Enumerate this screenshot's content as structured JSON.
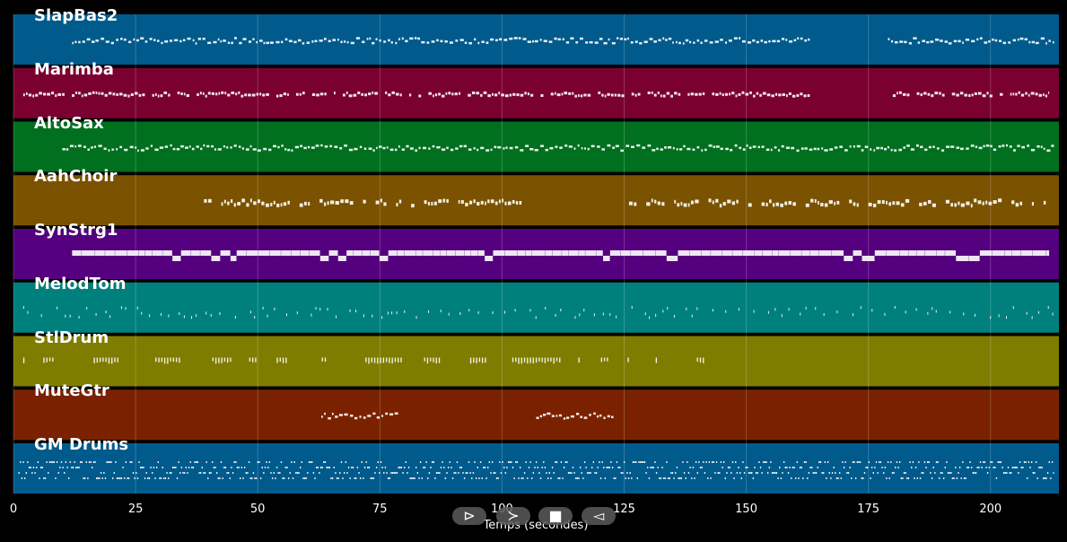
{
  "x_axis": {
    "label": "Temps (secondes)",
    "ticks": [
      "0",
      "25",
      "50",
      "75",
      "100",
      "125",
      "150",
      "175",
      "200"
    ],
    "range": [
      0,
      214
    ]
  },
  "controls": [
    {
      "name": "play-icon",
      "glyph": "⊳"
    },
    {
      "name": "forward-icon",
      "glyph": "≻"
    },
    {
      "name": "stop-icon",
      "glyph": "■"
    },
    {
      "name": "back-icon",
      "glyph": "◅"
    }
  ],
  "tracks": [
    {
      "name": "SlapBas2",
      "color": "#005a8c",
      "style": "dense",
      "segments": [
        [
          12,
          163
        ],
        [
          179,
          213
        ]
      ]
    },
    {
      "name": "Marimba",
      "color": "#7a0030",
      "style": "bursty",
      "segments": [
        [
          2,
          163
        ],
        [
          180,
          212
        ]
      ]
    },
    {
      "name": "AltoSax",
      "color": "#00701f",
      "style": "dense",
      "segments": [
        [
          10,
          213
        ]
      ]
    },
    {
      "name": "AahChoir",
      "color": "#7a5200",
      "style": "mixed",
      "segments": [
        [
          39,
          104
        ],
        [
          126,
          213
        ]
      ]
    },
    {
      "name": "SynStrg1",
      "color": "#55007f",
      "style": "block",
      "segments": [
        [
          12,
          212
        ]
      ]
    },
    {
      "name": "MelodTom",
      "color": "#00807c",
      "style": "sparse",
      "segments": [
        [
          2,
          213
        ]
      ]
    },
    {
      "name": "StlDrum",
      "color": "#7f7d00",
      "style": "clusters",
      "segments": [
        [
          2,
          147
        ]
      ]
    },
    {
      "name": "MuteGtr",
      "color": "#7a2200",
      "style": "dense",
      "segments": [
        [
          63,
          79
        ],
        [
          107,
          123
        ]
      ]
    },
    {
      "name": "GM Drums",
      "color": "#005a8c",
      "style": "drums",
      "segments": [
        [
          1,
          213
        ]
      ]
    }
  ]
}
